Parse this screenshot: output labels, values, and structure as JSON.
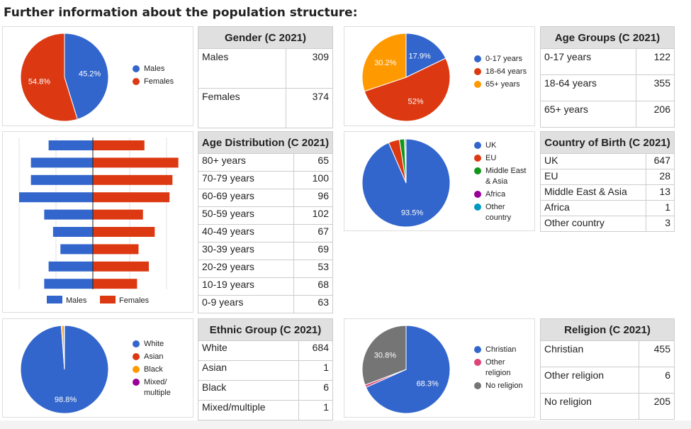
{
  "heading": "Further information about the population structure:",
  "colors": {
    "blue": "#3366cc",
    "red": "#dc3912",
    "orange": "#ff9900",
    "green": "#109618",
    "purple": "#990099",
    "cyan": "#0099c6",
    "pink": "#dd4477",
    "gray": "#757575"
  },
  "chart_data": [
    {
      "id": "gender",
      "type": "pie",
      "labels": [
        "Males",
        "Females"
      ],
      "values": [
        309,
        374
      ],
      "percent_labels": [
        "45.2%",
        "54.8%"
      ],
      "colors": [
        "#3366cc",
        "#dc3912"
      ],
      "legend": "right"
    },
    {
      "id": "age_groups",
      "type": "pie",
      "labels": [
        "0-17 years",
        "18-64 years",
        "65+ years"
      ],
      "values": [
        122,
        355,
        206
      ],
      "percent_labels": [
        "17.9%",
        "52%",
        "30.2%"
      ],
      "colors": [
        "#3366cc",
        "#dc3912",
        "#ff9900"
      ],
      "legend": "right"
    },
    {
      "id": "age_distribution",
      "type": "bar",
      "orientation": "horizontal",
      "stacked_pyramid": true,
      "categories": [
        "80+ years",
        "70-79 years",
        "60-69 years",
        "50-59 years",
        "40-49 years",
        "30-39 years",
        "20-29 years",
        "10-19 years",
        "0-9 years"
      ],
      "series": [
        {
          "name": "Males",
          "values": [
            30,
            42,
            42,
            50,
            33,
            27,
            22,
            30,
            33
          ],
          "color": "#3366cc"
        },
        {
          "name": "Females",
          "values": [
            35,
            58,
            54,
            52,
            34,
            42,
            31,
            38,
            30
          ],
          "color": "#dc3912"
        }
      ],
      "xlim": [
        -60,
        60
      ],
      "grid": true,
      "legend": "bottom"
    },
    {
      "id": "country",
      "type": "pie",
      "labels": [
        "UK",
        "EU",
        "Middle East & Asia",
        "Africa",
        "Other country"
      ],
      "values": [
        647,
        28,
        13,
        1,
        3
      ],
      "percent_labels": [
        "93.5%",
        "",
        "",
        "",
        ""
      ],
      "colors": [
        "#3366cc",
        "#dc3912",
        "#109618",
        "#990099",
        "#0099c6"
      ],
      "legend": "right"
    },
    {
      "id": "ethnic",
      "type": "pie",
      "labels": [
        "White",
        "Asian",
        "Black",
        "Mixed/ multiple"
      ],
      "values": [
        684,
        1,
        6,
        1
      ],
      "percent_labels": [
        "98.8%",
        "",
        "",
        ""
      ],
      "colors": [
        "#3366cc",
        "#dc3912",
        "#ff9900",
        "#990099"
      ],
      "legend": "right"
    },
    {
      "id": "religion",
      "type": "pie",
      "labels": [
        "Christian",
        "Other religion",
        "No religion"
      ],
      "values": [
        455,
        6,
        205
      ],
      "percent_labels": [
        "68.3%",
        "",
        "30.8%"
      ],
      "colors": [
        "#3366cc",
        "#dd4477",
        "#757575"
      ],
      "legend": "right"
    }
  ],
  "tables": [
    {
      "id": "gender",
      "title": "Gender (C 2021)",
      "rows": [
        [
          "Males",
          "309"
        ],
        [
          "Females",
          "374"
        ]
      ]
    },
    {
      "id": "age_groups",
      "title": "Age Groups (C 2021)",
      "rows": [
        [
          "0-17 years",
          "122"
        ],
        [
          "18-64 years",
          "355"
        ],
        [
          "65+ years",
          "206"
        ]
      ]
    },
    {
      "id": "age_distribution",
      "title": "Age Distribution (C 2021)",
      "rows": [
        [
          "80+ years",
          "65"
        ],
        [
          "70-79 years",
          "100"
        ],
        [
          "60-69 years",
          "96"
        ],
        [
          "50-59 years",
          "102"
        ],
        [
          "40-49 years",
          "67"
        ],
        [
          "30-39 years",
          "69"
        ],
        [
          "20-29 years",
          "53"
        ],
        [
          "10-19 years",
          "68"
        ],
        [
          "0-9 years",
          "63"
        ]
      ]
    },
    {
      "id": "country",
      "title": "Country of Birth (C 2021)",
      "rows": [
        [
          "UK",
          "647"
        ],
        [
          "EU",
          "28"
        ],
        [
          "Middle East & Asia",
          "13"
        ],
        [
          "Africa",
          "1"
        ],
        [
          "Other country",
          "3"
        ]
      ]
    },
    {
      "id": "ethnic",
      "title": "Ethnic Group (C 2021)",
      "rows": [
        [
          "White",
          "684"
        ],
        [
          "Asian",
          "1"
        ],
        [
          "Black",
          "6"
        ],
        [
          "Mixed/multiple",
          "1"
        ]
      ]
    },
    {
      "id": "religion",
      "title": "Religion (C 2021)",
      "rows": [
        [
          "Christian",
          "455"
        ],
        [
          "Other religion",
          "6"
        ],
        [
          "No religion",
          "205"
        ]
      ]
    }
  ]
}
